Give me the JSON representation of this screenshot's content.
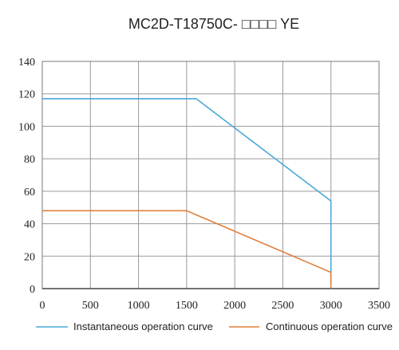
{
  "chart_data": {
    "type": "line",
    "title": "MC2D-T18750C- □□□□ YE",
    "xlabel": "",
    "ylabel": "",
    "xlim": [
      0,
      3500
    ],
    "ylim": [
      0,
      140
    ],
    "xticks": [
      "0",
      "500",
      "1000",
      "1500",
      "2000",
      "2500",
      "3000",
      "3500"
    ],
    "yticks": [
      "0",
      "20",
      "40",
      "60",
      "80",
      "100",
      "120",
      "140"
    ],
    "grid": true,
    "legend_position": "bottom",
    "series": [
      {
        "name": "Instantaneous operation curve",
        "color": "#4aa8d8",
        "x": [
          0,
          1600,
          3000,
          3000
        ],
        "y": [
          117,
          117,
          54,
          0
        ]
      },
      {
        "name": "Continuous operation curve",
        "color": "#e0803c",
        "x": [
          0,
          1500,
          3000,
          3000
        ],
        "y": [
          48,
          48,
          10,
          0
        ]
      }
    ]
  }
}
